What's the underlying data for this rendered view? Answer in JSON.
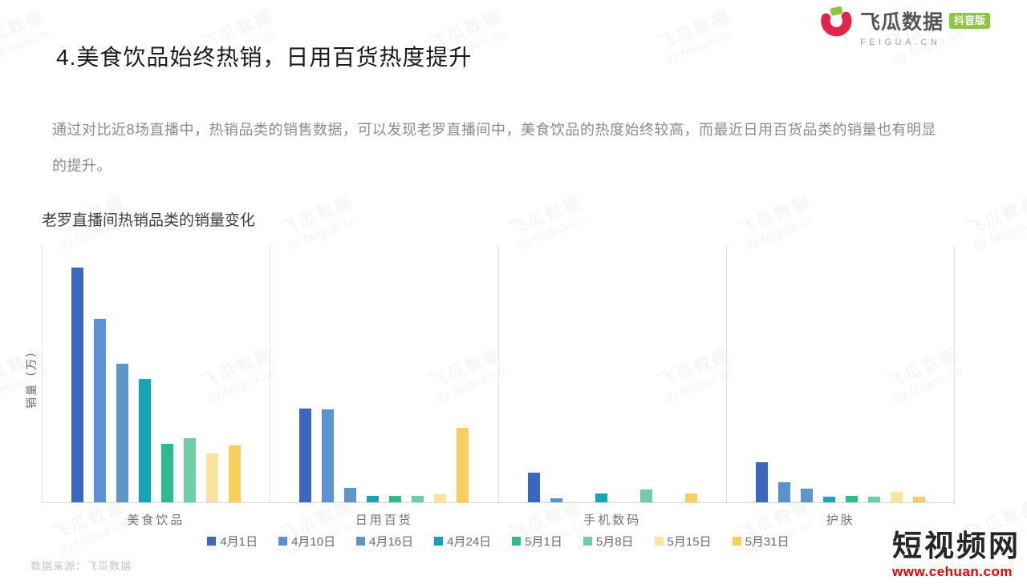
{
  "header": {
    "logo_text": "飞瓜数据",
    "logo_badge": "抖音版",
    "logo_subtext": "FEIGUA.CN"
  },
  "title": "4.美食饮品始终热销，日用百货热度提升",
  "description": "通过对比近8场直播中，热销品类的销售数据，可以发现老罗直播间中，美食饮品的热度始终较高，而最近日用百货品类的销量也有明显的提升。",
  "chart_data": {
    "type": "bar",
    "title": "老罗直播间热销品类的销量变化",
    "xlabel": "",
    "ylabel": "销量（万）",
    "categories": [
      "美食饮品",
      "日用百货",
      "手机数码",
      "护肤"
    ],
    "series": [
      {
        "name": "4月1日",
        "color": "#3B68BE",
        "values": [
          100,
          39.9,
          12.6,
          17.1
        ]
      },
      {
        "name": "4月10日",
        "color": "#5B92D4",
        "values": [
          78.2,
          39.6,
          1.7,
          8.5
        ]
      },
      {
        "name": "4月16日",
        "color": "#5F96C9",
        "values": [
          59.0,
          6.1,
          0,
          5.8
        ]
      },
      {
        "name": "4月24日",
        "color": "#16A5B8",
        "values": [
          52.6,
          2.7,
          3.8,
          2.4
        ]
      },
      {
        "name": "5月1日",
        "color": "#2EBA90",
        "values": [
          24.9,
          2.7,
          0,
          2.7
        ]
      },
      {
        "name": "5月8日",
        "color": "#6FCEA7",
        "values": [
          27.3,
          2.7,
          5.5,
          2.4
        ]
      },
      {
        "name": "5月15日",
        "color": "#FAE3A0",
        "values": [
          20.8,
          3.4,
          0,
          4.4
        ]
      },
      {
        "name": "5月31日",
        "color": "#F9CF5B",
        "values": [
          24.2,
          31.7,
          3.8,
          2.4
        ]
      }
    ],
    "ylim": [
      0,
      110
    ],
    "grid": false,
    "legend_position": "bottom",
    "axis_tick_labels": "none"
  },
  "footer": {
    "source": "数据来源：飞瓜数据"
  },
  "site_watermark": {
    "name": "短视频网",
    "url": "www.cehuan.com",
    "color": "#EE0000"
  },
  "background_watermark": {
    "line1": "飞瓜数据",
    "line2": "dy.feigua.cn"
  }
}
